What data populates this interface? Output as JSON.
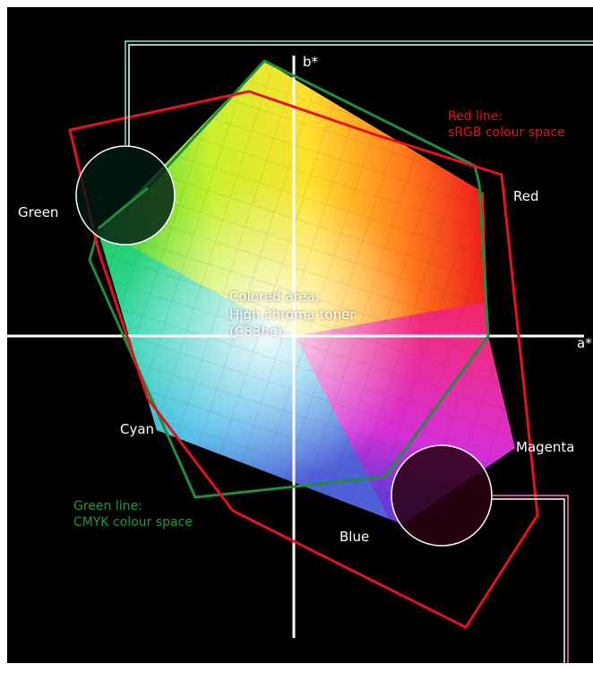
{
  "axes": {
    "b_label": "b*",
    "a_label": "a*"
  },
  "hues": {
    "green": "Green",
    "red": "Red",
    "cyan": "Cyan",
    "magenta": "Magenta",
    "blue": "Blue"
  },
  "legend": {
    "red_line": [
      "Red line:",
      "sRGB colour space"
    ],
    "green_line": [
      "Green line:",
      "CMYK colour space"
    ],
    "colored_area": [
      "Colored area:",
      "High chroma toner",
      "(C83hc)"
    ]
  },
  "colors": {
    "background": "#000000",
    "srgb_line": "#e8101c",
    "cmyk_line": "#1f8f3e",
    "callout_cyan": "#7fe3d9",
    "callout_pink": "#ff6ec2"
  }
}
